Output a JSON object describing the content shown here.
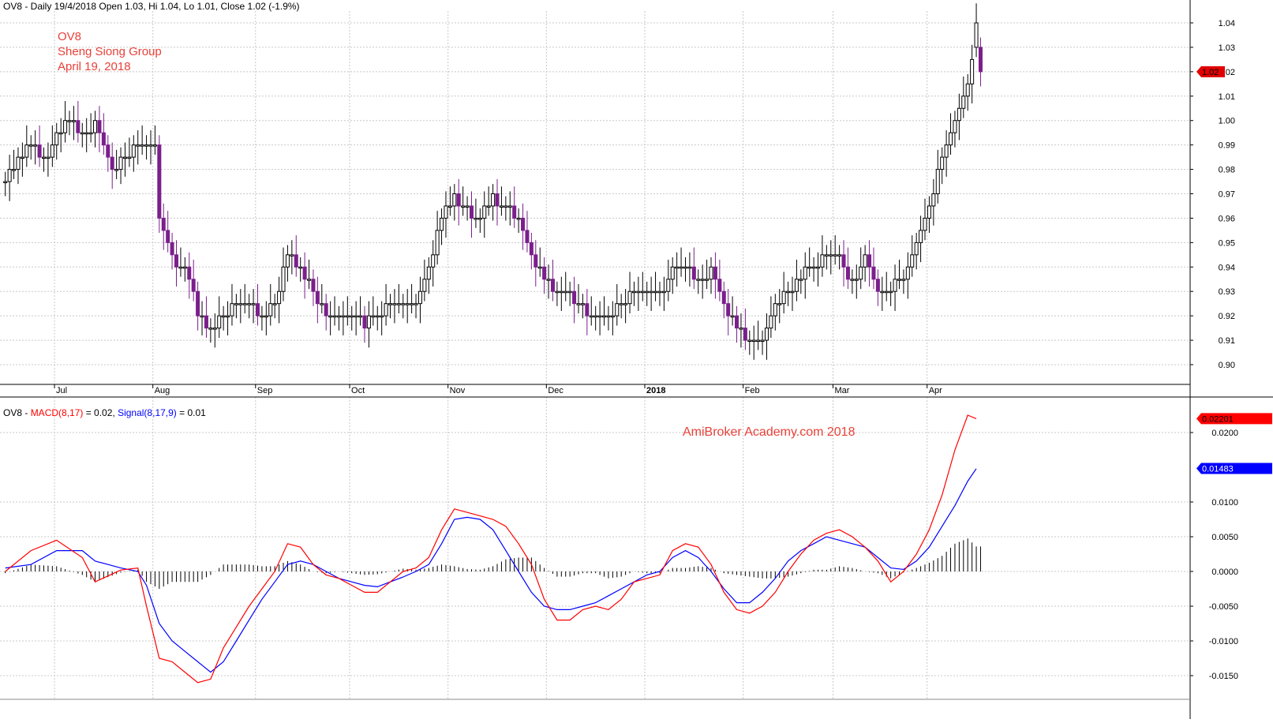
{
  "header": {
    "price_info": "OV8 - Daily 19/4/2018 Open 1.03, Hi 1.04, Lo 1.01, Close 1.02 (-1.9%)"
  },
  "annotation": {
    "lines": [
      "OV8",
      "Sheng Siong Group",
      "April 19, 2018"
    ],
    "color": "#e8413a"
  },
  "watermark": {
    "text": "AmiBroker Academy.com 2018",
    "color": "#e8413a"
  },
  "macd_header": {
    "prefix": "OV8 - ",
    "macd_label": "MACD(8,17)",
    "macd_value": " = 0.02, ",
    "signal_label": "Signal(8,17,9)",
    "signal_value": " = 0.01"
  },
  "chart_data": [
    {
      "type": "candlestick",
      "title": "",
      "ylim": [
        0.895,
        1.045
      ],
      "y_ticks": [
        "1.04",
        "1.03",
        "1.02",
        "1.01",
        "1.00",
        "0.99",
        "0.98",
        "0.97",
        "0.96",
        "0.95",
        "0.94",
        "0.93",
        "0.92",
        "0.91",
        "0.90"
      ],
      "x_labels": [
        "Jul",
        "Aug",
        "Sep",
        "Oct",
        "Nov",
        "Dec",
        "2018",
        "Feb",
        "Mar",
        "Apr"
      ],
      "last_price_label": "1.02",
      "colors": {
        "up": "#000000",
        "down": "#7b1f8c",
        "last_badge": "#e00000"
      },
      "close_path": [
        [
          0,
          0.975
        ],
        [
          3,
          0.985
        ],
        [
          6,
          0.99
        ],
        [
          9,
          0.983
        ],
        [
          12,
          0.995
        ],
        [
          15,
          1.0
        ],
        [
          18,
          0.993
        ],
        [
          21,
          0.998
        ],
        [
          25,
          0.978
        ],
        [
          27,
          0.985
        ],
        [
          32,
          0.99
        ],
        [
          35,
          0.99
        ],
        [
          36,
          0.962
        ],
        [
          39,
          0.943
        ],
        [
          42,
          0.94
        ],
        [
          45,
          0.922
        ],
        [
          48,
          0.915
        ],
        [
          51,
          0.92
        ],
        [
          54,
          0.925
        ],
        [
          57,
          0.927
        ],
        [
          60,
          0.92
        ],
        [
          63,
          0.925
        ],
        [
          66,
          0.945
        ],
        [
          69,
          0.94
        ],
        [
          72,
          0.93
        ],
        [
          75,
          0.92
        ],
        [
          78,
          0.92
        ],
        [
          81,
          0.92
        ],
        [
          84,
          0.917
        ],
        [
          87,
          0.92
        ],
        [
          90,
          0.925
        ],
        [
          93,
          0.927
        ],
        [
          96,
          0.925
        ],
        [
          99,
          0.94
        ],
        [
          102,
          0.96
        ],
        [
          105,
          0.968
        ],
        [
          108,
          0.963
        ],
        [
          111,
          0.96
        ],
        [
          114,
          0.968
        ],
        [
          117,
          0.965
        ],
        [
          120,
          0.958
        ],
        [
          123,
          0.945
        ],
        [
          126,
          0.935
        ],
        [
          129,
          0.928
        ],
        [
          132,
          0.928
        ],
        [
          135,
          0.923
        ],
        [
          138,
          0.92
        ],
        [
          141,
          0.92
        ],
        [
          144,
          0.925
        ],
        [
          147,
          0.93
        ],
        [
          150,
          0.928
        ],
        [
          153,
          0.928
        ],
        [
          156,
          0.938
        ],
        [
          159,
          0.94
        ],
        [
          162,
          0.935
        ],
        [
          165,
          0.938
        ],
        [
          168,
          0.925
        ],
        [
          171,
          0.915
        ],
        [
          174,
          0.908
        ],
        [
          177,
          0.912
        ],
        [
          180,
          0.925
        ],
        [
          183,
          0.93
        ],
        [
          186,
          0.937
        ],
        [
          189,
          0.94
        ],
        [
          192,
          0.945
        ],
        [
          195,
          0.945
        ],
        [
          198,
          0.933
        ],
        [
          201,
          0.945
        ],
        [
          204,
          0.93
        ],
        [
          207,
          0.932
        ],
        [
          210,
          0.935
        ],
        [
          213,
          0.95
        ],
        [
          216,
          0.965
        ],
        [
          219,
          0.985
        ],
        [
          222,
          1.0
        ],
        [
          225,
          1.015
        ],
        [
          227,
          1.03
        ],
        [
          228,
          1.02
        ]
      ]
    },
    {
      "type": "line",
      "title": "",
      "ylim": [
        -0.0165,
        0.0235
      ],
      "y_ticks": [
        "0.0200",
        "0.0100",
        "0.0050",
        "0.0000",
        "-0.0050",
        "-0.0100",
        "-0.0150"
      ],
      "last_macd_label": "0.02201",
      "last_signal_label": "0.01483",
      "colors": {
        "macd": "#ff0000",
        "signal": "#0000ff",
        "histogram": "#000000"
      },
      "macd": [
        [
          0,
          0.0
        ],
        [
          6,
          0.003
        ],
        [
          12,
          0.0045
        ],
        [
          18,
          0.002
        ],
        [
          21,
          -0.0015
        ],
        [
          27,
          0.0002
        ],
        [
          31,
          0.0005
        ],
        [
          33,
          -0.005
        ],
        [
          36,
          -0.0125
        ],
        [
          39,
          -0.013
        ],
        [
          42,
          -0.0145
        ],
        [
          45,
          -0.016
        ],
        [
          48,
          -0.0155
        ],
        [
          51,
          -0.011
        ],
        [
          54,
          -0.008
        ],
        [
          57,
          -0.005
        ],
        [
          60,
          -0.0025
        ],
        [
          63,
          0.0
        ],
        [
          66,
          0.004
        ],
        [
          69,
          0.0035
        ],
        [
          72,
          0.001
        ],
        [
          75,
          -0.0005
        ],
        [
          78,
          -0.001
        ],
        [
          81,
          -0.002
        ],
        [
          84,
          -0.003
        ],
        [
          87,
          -0.003
        ],
        [
          90,
          -0.0015
        ],
        [
          93,
          0.0
        ],
        [
          96,
          0.0005
        ],
        [
          99,
          0.002
        ],
        [
          102,
          0.006
        ],
        [
          105,
          0.009
        ],
        [
          108,
          0.0085
        ],
        [
          111,
          0.008
        ],
        [
          114,
          0.0075
        ],
        [
          117,
          0.0065
        ],
        [
          120,
          0.004
        ],
        [
          123,
          0.001
        ],
        [
          126,
          -0.004
        ],
        [
          129,
          -0.007
        ],
        [
          132,
          -0.007
        ],
        [
          135,
          -0.0055
        ],
        [
          138,
          -0.005
        ],
        [
          141,
          -0.0055
        ],
        [
          144,
          -0.004
        ],
        [
          147,
          -0.0015
        ],
        [
          150,
          -0.001
        ],
        [
          153,
          -0.0005
        ],
        [
          156,
          0.003
        ],
        [
          159,
          0.004
        ],
        [
          162,
          0.0035
        ],
        [
          165,
          0.001
        ],
        [
          168,
          -0.003
        ],
        [
          171,
          -0.0055
        ],
        [
          174,
          -0.006
        ],
        [
          177,
          -0.005
        ],
        [
          180,
          -0.003
        ],
        [
          183,
          0.0
        ],
        [
          186,
          0.0025
        ],
        [
          189,
          0.0045
        ],
        [
          192,
          0.0055
        ],
        [
          195,
          0.006
        ],
        [
          198,
          0.005
        ],
        [
          201,
          0.0035
        ],
        [
          204,
          0.0015
        ],
        [
          207,
          -0.0015
        ],
        [
          210,
          0.0
        ],
        [
          213,
          0.0025
        ],
        [
          216,
          0.006
        ],
        [
          219,
          0.011
        ],
        [
          222,
          0.0175
        ],
        [
          225,
          0.0225
        ],
        [
          227,
          0.022
        ]
      ],
      "signal": [
        [
          0,
          0.0005
        ],
        [
          6,
          0.001
        ],
        [
          12,
          0.003
        ],
        [
          18,
          0.003
        ],
        [
          21,
          0.0015
        ],
        [
          27,
          0.0005
        ],
        [
          31,
          0.0
        ],
        [
          33,
          -0.002
        ],
        [
          36,
          -0.0075
        ],
        [
          39,
          -0.01
        ],
        [
          42,
          -0.0115
        ],
        [
          45,
          -0.013
        ],
        [
          48,
          -0.0145
        ],
        [
          51,
          -0.013
        ],
        [
          54,
          -0.01
        ],
        [
          57,
          -0.007
        ],
        [
          60,
          -0.004
        ],
        [
          63,
          -0.0015
        ],
        [
          66,
          0.001
        ],
        [
          69,
          0.0015
        ],
        [
          72,
          0.001
        ],
        [
          75,
          0.0
        ],
        [
          78,
          -0.001
        ],
        [
          81,
          -0.0015
        ],
        [
          84,
          -0.002
        ],
        [
          87,
          -0.0022
        ],
        [
          90,
          -0.0015
        ],
        [
          93,
          -0.0008
        ],
        [
          96,
          0.0
        ],
        [
          99,
          0.001
        ],
        [
          102,
          0.004
        ],
        [
          105,
          0.0075
        ],
        [
          108,
          0.0078
        ],
        [
          111,
          0.0075
        ],
        [
          114,
          0.006
        ],
        [
          117,
          0.003
        ],
        [
          120,
          0.0
        ],
        [
          123,
          -0.003
        ],
        [
          126,
          -0.005
        ],
        [
          129,
          -0.0055
        ],
        [
          132,
          -0.0055
        ],
        [
          135,
          -0.005
        ],
        [
          138,
          -0.0045
        ],
        [
          141,
          -0.0035
        ],
        [
          144,
          -0.0025
        ],
        [
          147,
          -0.0015
        ],
        [
          150,
          -0.0005
        ],
        [
          153,
          0.0
        ],
        [
          156,
          0.002
        ],
        [
          159,
          0.003
        ],
        [
          162,
          0.002
        ],
        [
          165,
          0.0
        ],
        [
          168,
          -0.0025
        ],
        [
          171,
          -0.0045
        ],
        [
          174,
          -0.0045
        ],
        [
          177,
          -0.003
        ],
        [
          180,
          -0.001
        ],
        [
          183,
          0.0015
        ],
        [
          186,
          0.003
        ],
        [
          189,
          0.004
        ],
        [
          192,
          0.005
        ],
        [
          195,
          0.0045
        ],
        [
          198,
          0.004
        ],
        [
          201,
          0.0035
        ],
        [
          204,
          0.002
        ],
        [
          207,
          0.0005
        ],
        [
          210,
          0.0003
        ],
        [
          213,
          0.0015
        ],
        [
          216,
          0.0035
        ],
        [
          219,
          0.0065
        ],
        [
          222,
          0.0095
        ],
        [
          225,
          0.013
        ],
        [
          227,
          0.0148
        ]
      ]
    }
  ]
}
